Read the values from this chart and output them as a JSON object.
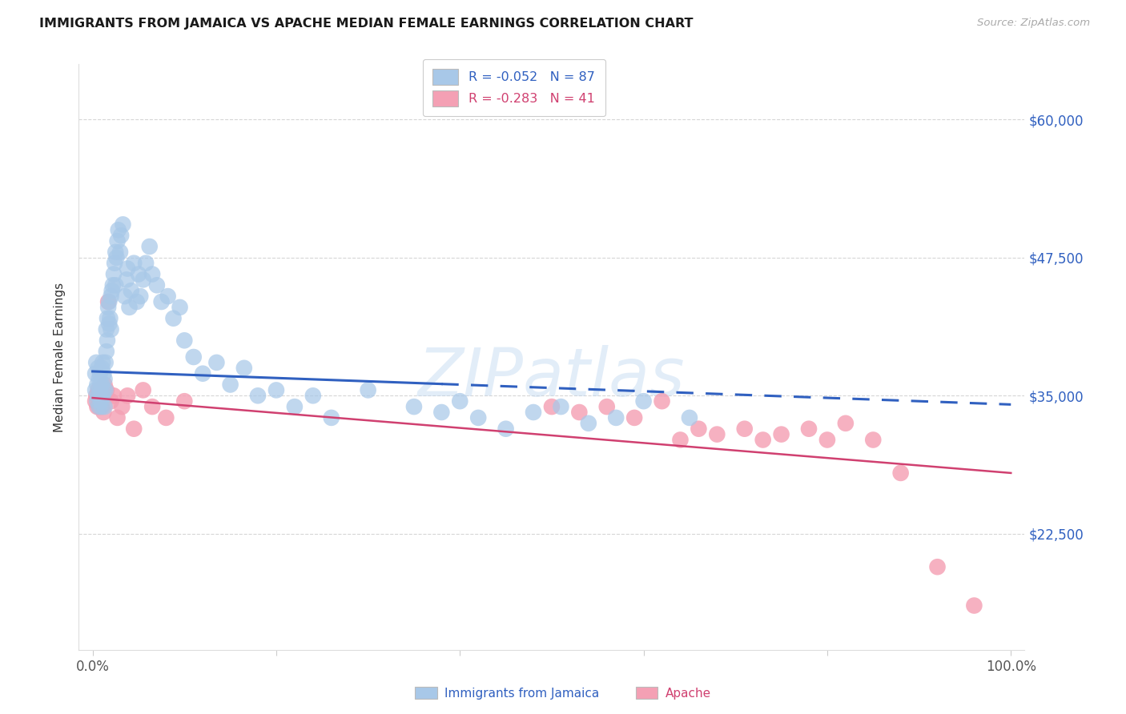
{
  "title": "IMMIGRANTS FROM JAMAICA VS APACHE MEDIAN FEMALE EARNINGS CORRELATION CHART",
  "source": "Source: ZipAtlas.com",
  "ylabel": "Median Female Earnings",
  "background_color": "#ffffff",
  "watermark": "ZIPatlas",
  "ytick_labels": [
    "$22,500",
    "$35,000",
    "$47,500",
    "$60,000"
  ],
  "ytick_values": [
    22500,
    35000,
    47500,
    60000
  ],
  "ylim": [
    12000,
    65000
  ],
  "xtick_positions": [
    0.0,
    0.2,
    0.4,
    0.6,
    0.8,
    1.0
  ],
  "xtick_labels": [
    "0.0%",
    "",
    "",
    "",
    "",
    "100.0%"
  ],
  "blue_color": "#a8c8e8",
  "pink_color": "#f4a0b4",
  "blue_line_color": "#3060c0",
  "pink_line_color": "#d04070",
  "legend_label1": "R = -0.052   N = 87",
  "legend_label2": "R = -0.283   N = 41",
  "bottom_legend1": "Immigrants from Jamaica",
  "bottom_legend2": "Apache",
  "jamaica_x": [
    0.003,
    0.003,
    0.004,
    0.005,
    0.005,
    0.006,
    0.006,
    0.007,
    0.007,
    0.008,
    0.008,
    0.009,
    0.009,
    0.01,
    0.01,
    0.01,
    0.011,
    0.011,
    0.012,
    0.012,
    0.013,
    0.013,
    0.014,
    0.014,
    0.015,
    0.015,
    0.016,
    0.016,
    0.017,
    0.018,
    0.018,
    0.019,
    0.02,
    0.02,
    0.021,
    0.022,
    0.023,
    0.024,
    0.025,
    0.025,
    0.026,
    0.027,
    0.028,
    0.03,
    0.031,
    0.033,
    0.035,
    0.037,
    0.038,
    0.04,
    0.042,
    0.045,
    0.048,
    0.05,
    0.052,
    0.055,
    0.058,
    0.062,
    0.065,
    0.07,
    0.075,
    0.082,
    0.088,
    0.095,
    0.1,
    0.11,
    0.12,
    0.135,
    0.15,
    0.165,
    0.18,
    0.2,
    0.22,
    0.24,
    0.26,
    0.3,
    0.35,
    0.38,
    0.4,
    0.42,
    0.45,
    0.48,
    0.51,
    0.54,
    0.57,
    0.6,
    0.65
  ],
  "jamaica_y": [
    37000,
    35500,
    38000,
    36000,
    34500,
    37500,
    35000,
    36500,
    34000,
    37000,
    35500,
    36000,
    34500,
    37500,
    36000,
    34000,
    38000,
    35000,
    37000,
    35500,
    36500,
    34000,
    38000,
    35500,
    41000,
    39000,
    42000,
    40000,
    43000,
    41500,
    43500,
    42000,
    44000,
    41000,
    44500,
    45000,
    46000,
    47000,
    48000,
    45000,
    47500,
    49000,
    50000,
    48000,
    49500,
    50500,
    44000,
    45500,
    46500,
    43000,
    44500,
    47000,
    43500,
    46000,
    44000,
    45500,
    47000,
    48500,
    46000,
    45000,
    43500,
    44000,
    42000,
    43000,
    40000,
    38500,
    37000,
    38000,
    36000,
    37500,
    35000,
    35500,
    34000,
    35000,
    33000,
    35500,
    34000,
    33500,
    34500,
    33000,
    32000,
    33500,
    34000,
    32500,
    33000,
    34500,
    33000
  ],
  "apache_x": [
    0.003,
    0.004,
    0.005,
    0.006,
    0.007,
    0.008,
    0.009,
    0.01,
    0.011,
    0.012,
    0.013,
    0.015,
    0.017,
    0.02,
    0.023,
    0.027,
    0.032,
    0.038,
    0.045,
    0.055,
    0.065,
    0.08,
    0.1,
    0.5,
    0.53,
    0.56,
    0.59,
    0.62,
    0.64,
    0.66,
    0.68,
    0.71,
    0.73,
    0.75,
    0.78,
    0.8,
    0.82,
    0.85,
    0.88,
    0.92,
    0.96
  ],
  "apache_y": [
    34500,
    35000,
    34000,
    35500,
    34000,
    35000,
    34500,
    34000,
    35000,
    33500,
    36000,
    35500,
    43500,
    34500,
    35000,
    33000,
    34000,
    35000,
    32000,
    35500,
    34000,
    33000,
    34500,
    34000,
    33500,
    34000,
    33000,
    34500,
    31000,
    32000,
    31500,
    32000,
    31000,
    31500,
    32000,
    31000,
    32500,
    31000,
    28000,
    19500,
    16000
  ],
  "blue_trend_x0": 0.0,
  "blue_trend_x_solid_end": 0.38,
  "blue_trend_x1": 1.0,
  "blue_trend_y0": 37200,
  "blue_trend_y1": 34200,
  "pink_trend_x0": 0.0,
  "pink_trend_x1": 1.0,
  "pink_trend_y0": 34800,
  "pink_trend_y1": 28000
}
